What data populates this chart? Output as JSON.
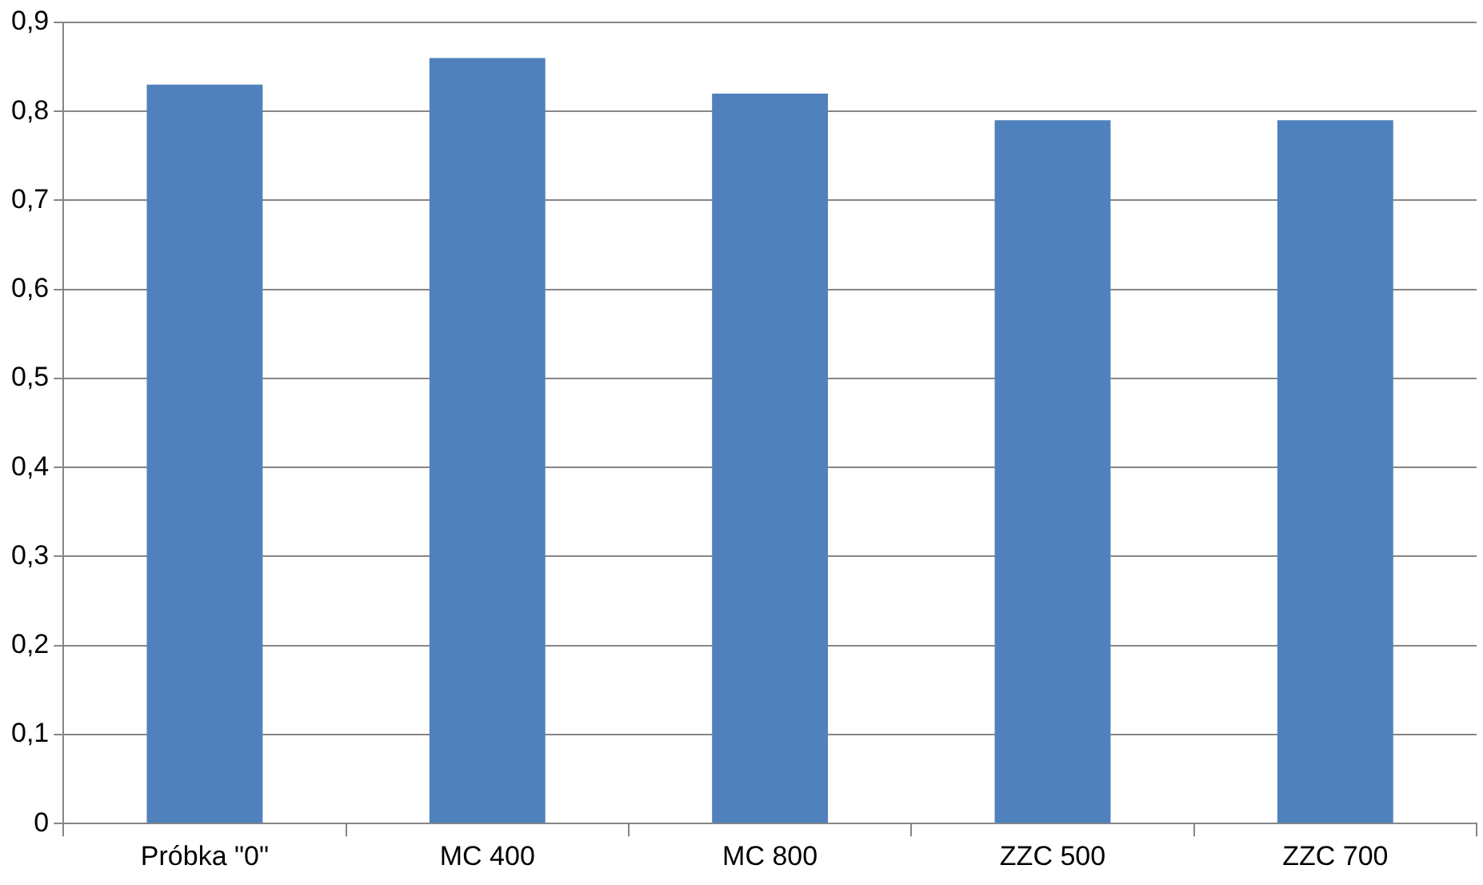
{
  "chart_data": {
    "type": "bar",
    "categories": [
      "Próbka \"0\"",
      "MC 400",
      "MC 800",
      "ZZC 500",
      "ZZC 700"
    ],
    "values": [
      0.83,
      0.86,
      0.82,
      0.79,
      0.79
    ],
    "color": "#4f81bd",
    "ylim": [
      0,
      0.9
    ],
    "yticks": [
      0,
      {
        "value": 0.1,
        "label": "0,1"
      },
      {
        "value": 0.2,
        "label": "0,2"
      },
      {
        "value": 0.3,
        "label": "0,3"
      },
      {
        "value": 0.4,
        "label": "0,4"
      },
      {
        "value": 0.5,
        "label": "0,5"
      },
      {
        "value": 0.6,
        "label": "0,6"
      },
      {
        "value": 0.7,
        "label": "0,7"
      },
      {
        "value": 0.8,
        "label": "0,8"
      },
      {
        "value": 0.9,
        "label": "0,9"
      }
    ],
    "grid": "y"
  }
}
